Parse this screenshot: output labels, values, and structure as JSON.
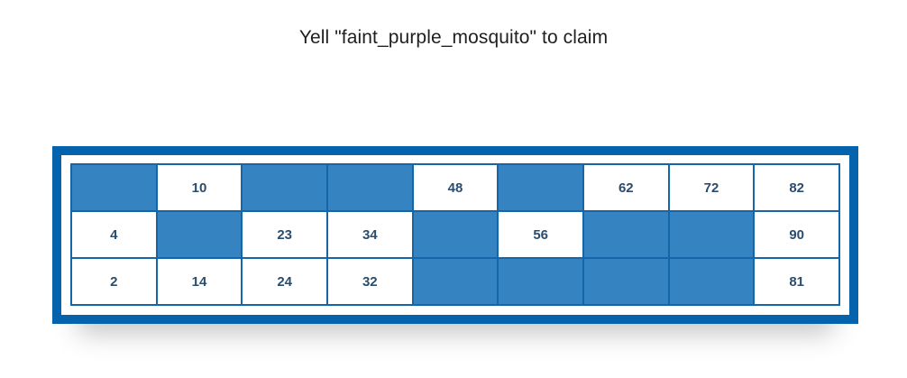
{
  "title": "Yell \"faint_purple_mosquito\" to claim",
  "colors": {
    "frame": "#0563ad",
    "blank_cell": "#3683c2",
    "number_text": "#2a4d6e",
    "grid_line": "#1565a9"
  },
  "ticket": {
    "rows": [
      [
        "",
        "10",
        "",
        "",
        "48",
        "",
        "62",
        "72",
        "82"
      ],
      [
        "4",
        "",
        "23",
        "34",
        "",
        "56",
        "",
        "",
        "90"
      ],
      [
        "2",
        "14",
        "24",
        "32",
        "",
        "",
        "",
        "",
        "81"
      ]
    ]
  }
}
